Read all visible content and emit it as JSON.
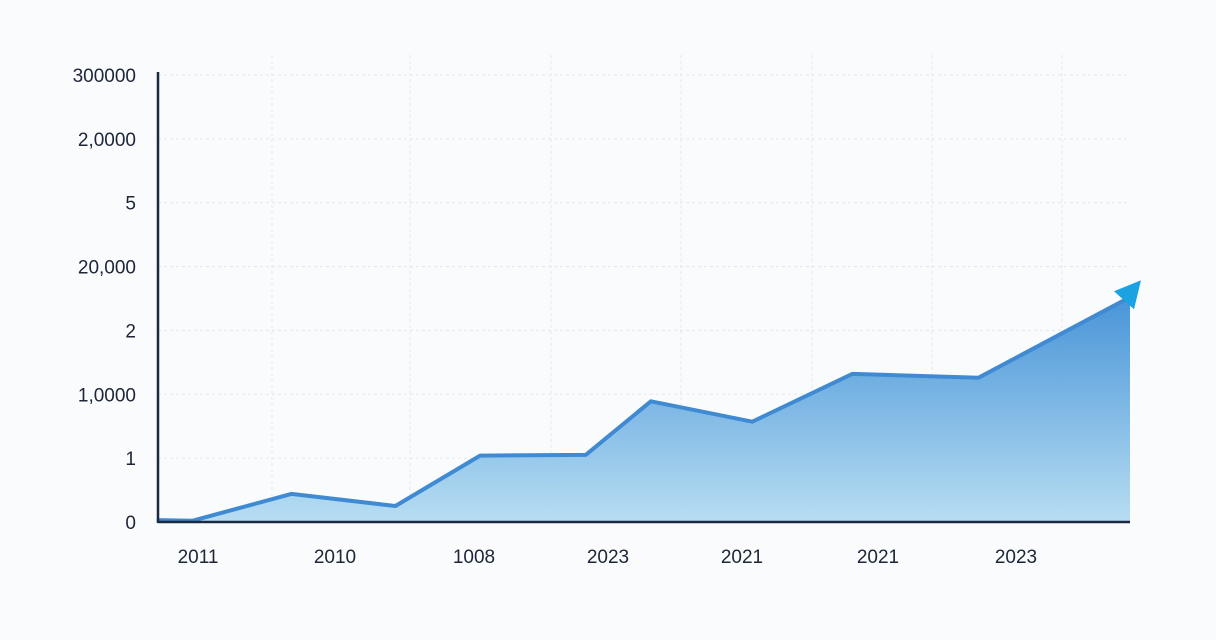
{
  "chart_data": {
    "type": "area",
    "title": "",
    "xlabel": "",
    "ylabel": "",
    "x_tick_labels": [
      "2011",
      "2010",
      "1008",
      "2023",
      "2021",
      "2021",
      "2023"
    ],
    "y_tick_labels": [
      "0",
      "1",
      "1,0000",
      "2",
      "20,000",
      "5",
      "2,0000",
      "300000"
    ],
    "ylim": [
      0,
      7
    ],
    "grid": true,
    "legend": "none",
    "series": [
      {
        "values": [
          {
            "x": 0.0,
            "y": 0.03
          },
          {
            "x": 0.25,
            "y": 0.02
          },
          {
            "x": 0.96,
            "y": 0.44
          },
          {
            "x": 1.71,
            "y": 0.25
          },
          {
            "x": 2.32,
            "y": 1.04
          },
          {
            "x": 3.08,
            "y": 1.05
          },
          {
            "x": 3.55,
            "y": 1.89
          },
          {
            "x": 4.28,
            "y": 1.57
          },
          {
            "x": 5.0,
            "y": 2.32
          },
          {
            "x": 5.91,
            "y": 2.26
          },
          {
            "x": 7.0,
            "y": 3.52
          }
        ]
      }
    ],
    "colors": {
      "area_top": "#3f8fd6",
      "area_bottom": "#a6d3ef",
      "line": "#3f8ad2",
      "arrow": "#1aa3e0",
      "axis": "#1b2a40",
      "grid": "#e4e8ee",
      "text": "#1c2638"
    }
  }
}
